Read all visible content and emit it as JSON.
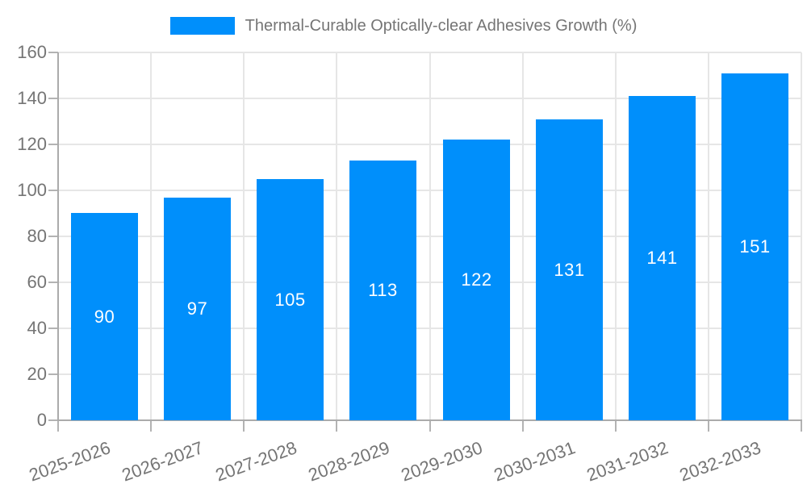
{
  "legend": {
    "label": "Thermal-Curable Optically-clear Adhesives Growth (%)"
  },
  "chart_data": {
    "type": "bar",
    "title": "Thermal-Curable Optically-clear Adhesives Growth (%)",
    "categories": [
      "2025-2026",
      "2026-2027",
      "2027-2028",
      "2028-2029",
      "2029-2030",
      "2030-2031",
      "2031-2032",
      "2032-2033"
    ],
    "values": [
      90,
      97,
      105,
      113,
      122,
      131,
      141,
      151
    ],
    "xlabel": "",
    "ylabel": "",
    "ylim": [
      0,
      160
    ],
    "ytick_step": 20,
    "yticks": [
      0,
      20,
      40,
      60,
      80,
      100,
      120,
      140,
      160
    ],
    "grid": true,
    "legend_position": "top",
    "colors": {
      "bar": "#008FFB",
      "value_label": "#FFFFFF",
      "axis": "#ABABAB",
      "tick": "#B3B3B3",
      "grid": "#E6E6E6",
      "text": "#757575"
    }
  }
}
